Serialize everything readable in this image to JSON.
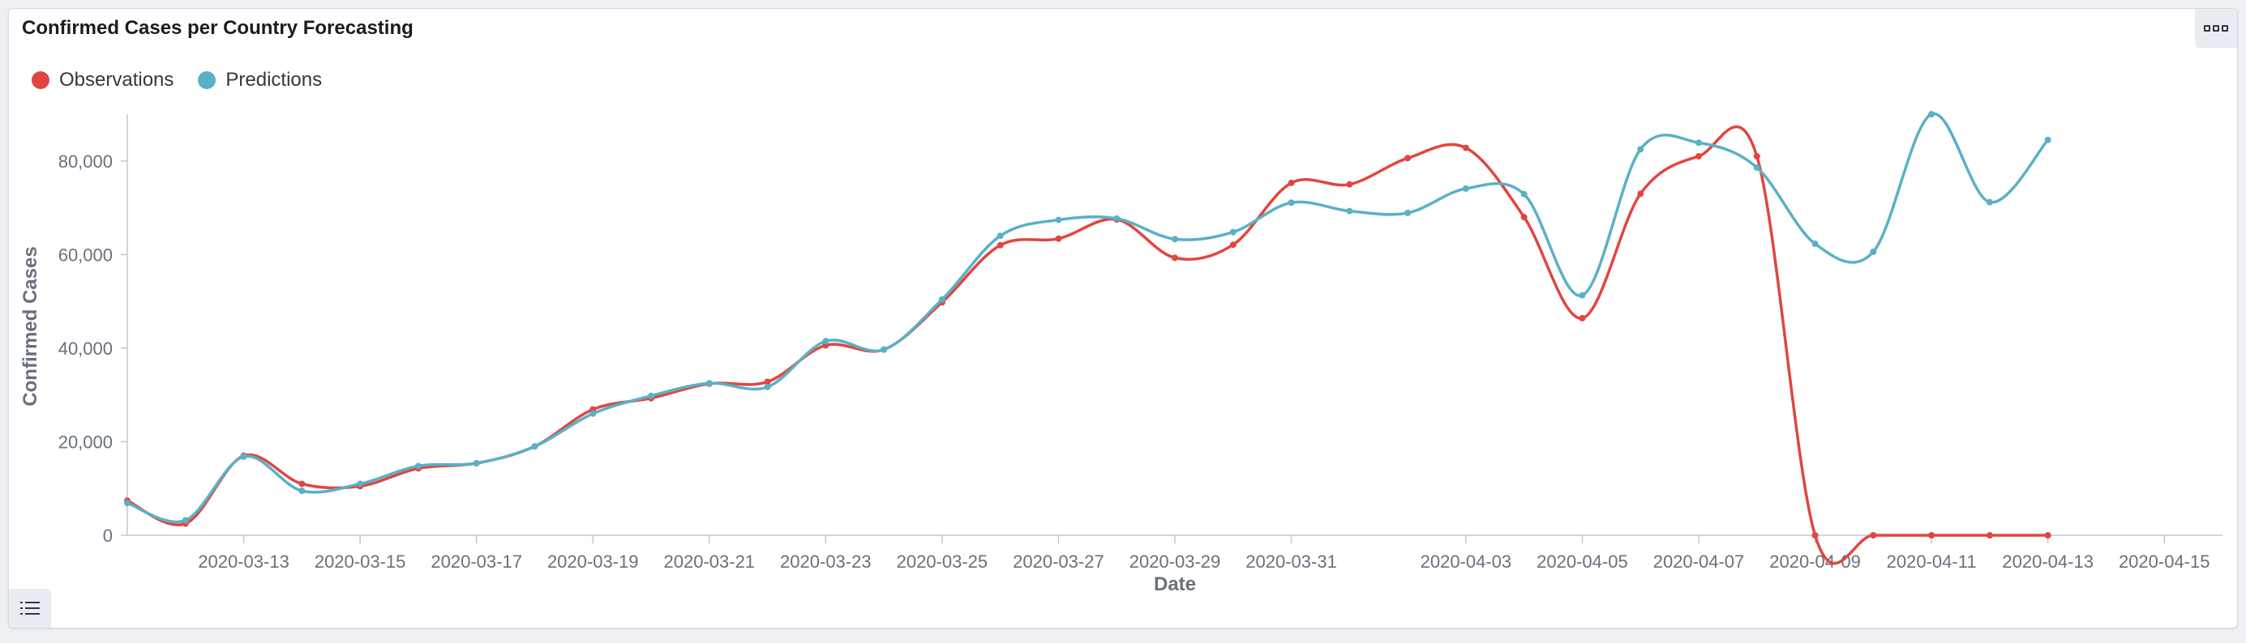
{
  "panel": {
    "title": "Confirmed Cases per Country Forecasting"
  },
  "colors": {
    "observations": "#e0463f",
    "predictions": "#5ab0c7",
    "axis": "#c2c7d0",
    "text": "#69707d"
  },
  "icons": {
    "panel_menu": "options-dots-icon",
    "legend_toggle": "list-icon"
  },
  "chart_data": {
    "type": "line",
    "xlabel": "Date",
    "ylabel": "Confirmed Cases",
    "ylim": [
      0,
      90000
    ],
    "xlim": [
      "2020-03-11",
      "2020-04-16"
    ],
    "y_ticks": [
      0,
      20000,
      40000,
      60000,
      80000
    ],
    "y_tick_labels": [
      "0",
      "20,000",
      "40,000",
      "60,000",
      "80,000"
    ],
    "x_ticks": [
      "2020-03-13",
      "2020-03-15",
      "2020-03-17",
      "2020-03-19",
      "2020-03-21",
      "2020-03-23",
      "2020-03-25",
      "2020-03-27",
      "2020-03-29",
      "2020-03-31",
      "2020-04-03",
      "2020-04-05",
      "2020-04-07",
      "2020-04-09",
      "2020-04-11",
      "2020-04-13",
      "2020-04-15"
    ],
    "legend_position": "top-left",
    "grid": false,
    "series": [
      {
        "name": "Observations",
        "color": "#e0463f",
        "x": [
          "2020-03-11",
          "2020-03-12",
          "2020-03-13",
          "2020-03-14",
          "2020-03-15",
          "2020-03-16",
          "2020-03-17",
          "2020-03-18",
          "2020-03-19",
          "2020-03-20",
          "2020-03-21",
          "2020-03-22",
          "2020-03-23",
          "2020-03-24",
          "2020-03-25",
          "2020-03-26",
          "2020-03-27",
          "2020-03-28",
          "2020-03-29",
          "2020-03-30",
          "2020-03-31",
          "2020-04-01",
          "2020-04-02",
          "2020-04-03",
          "2020-04-04",
          "2020-04-05",
          "2020-04-06",
          "2020-04-07",
          "2020-04-08",
          "2020-04-09",
          "2020-04-10",
          "2020-04-11",
          "2020-04-12",
          "2020-04-13"
        ],
        "values": [
          7400,
          2500,
          17000,
          11000,
          10500,
          14300,
          15400,
          19000,
          26900,
          29300,
          32400,
          32800,
          40600,
          39700,
          49800,
          62000,
          63400,
          67500,
          59300,
          62100,
          75300,
          75000,
          80600,
          82800,
          68000,
          46400,
          73000,
          81000,
          81000,
          0,
          0,
          0,
          0,
          0
        ]
      },
      {
        "name": "Predictions",
        "color": "#5ab0c7",
        "x": [
          "2020-03-11",
          "2020-03-12",
          "2020-03-13",
          "2020-03-14",
          "2020-03-15",
          "2020-03-16",
          "2020-03-17",
          "2020-03-18",
          "2020-03-19",
          "2020-03-20",
          "2020-03-21",
          "2020-03-22",
          "2020-03-23",
          "2020-03-24",
          "2020-03-25",
          "2020-03-26",
          "2020-03-27",
          "2020-03-28",
          "2020-03-29",
          "2020-03-30",
          "2020-03-31",
          "2020-04-01",
          "2020-04-02",
          "2020-04-03",
          "2020-04-04",
          "2020-04-05",
          "2020-04-06",
          "2020-04-07",
          "2020-04-08",
          "2020-04-09",
          "2020-04-10",
          "2020-04-11",
          "2020-04-12",
          "2020-04-13"
        ],
        "values": [
          6900,
          3200,
          16800,
          9500,
          11000,
          14800,
          15400,
          19000,
          26000,
          29800,
          32500,
          31700,
          41500,
          39700,
          50400,
          64000,
          67400,
          67700,
          63300,
          64800,
          71100,
          69300,
          68900,
          74100,
          72900,
          51300,
          82500,
          83900,
          78600,
          62300,
          60600,
          90000,
          71200,
          84500
        ]
      }
    ]
  }
}
